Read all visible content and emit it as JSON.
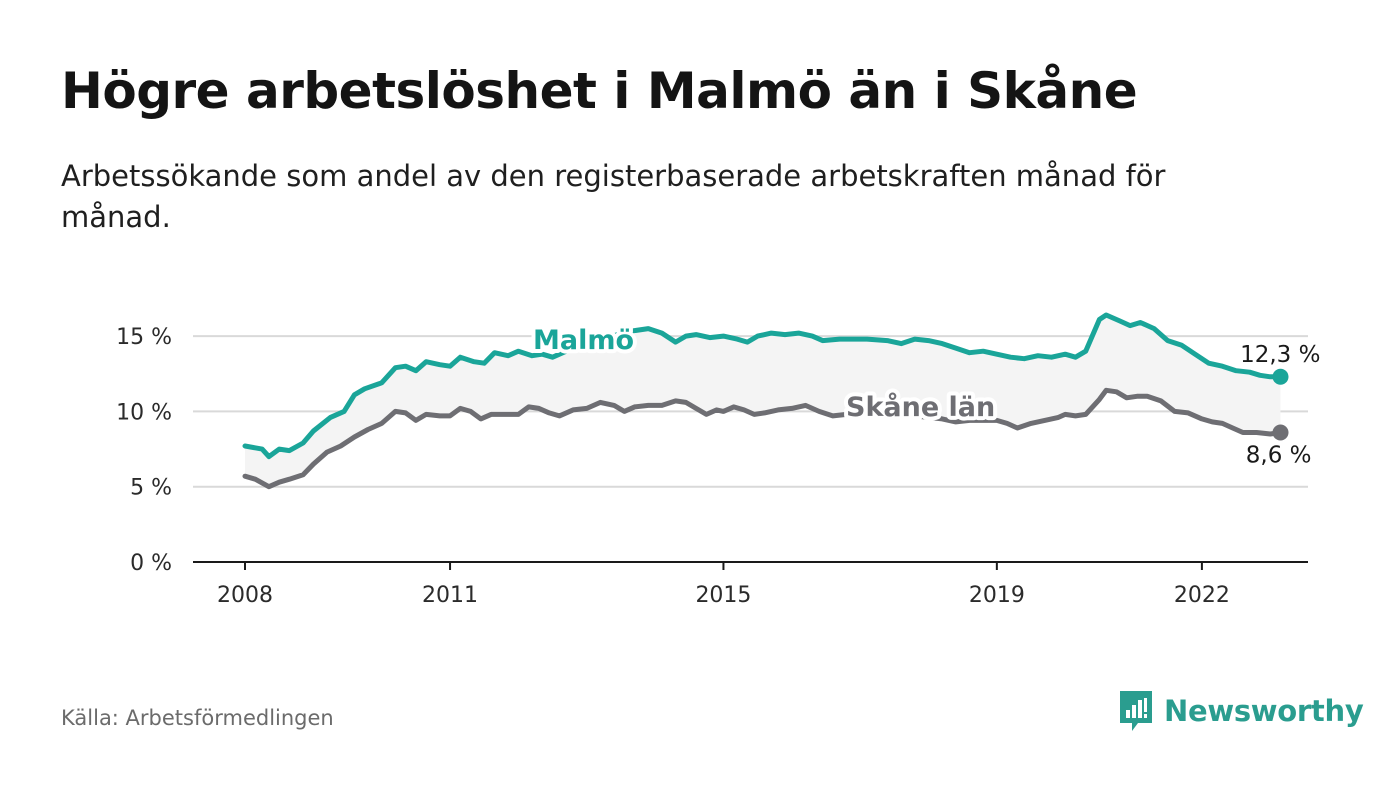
{
  "header": {
    "title": "Högre arbetslöshet i Malmö än i Skåne",
    "subtitle": "Arbetssökande som andel av den registerbaserade arbetskraften månad för månad."
  },
  "footer": {
    "source": "Källa: Arbetsförmedlingen",
    "brand": "Newsworthy"
  },
  "colors": {
    "malmo": "#1aa599",
    "skane": "#6e6e73",
    "band": "#f4f4f4",
    "grid": "#d9d9d9",
    "brand": "#2a9d8f"
  },
  "chart_data": {
    "type": "line",
    "title": "Högre arbetslöshet i Malmö än i Skåne",
    "xlabel": "",
    "ylabel": "",
    "xlim": [
      2007.9,
      2023.9
    ],
    "ylim": [
      0,
      17
    ],
    "yticks": [
      0,
      5,
      10,
      15
    ],
    "ytick_labels": [
      "0 %",
      "5 %",
      "10 %",
      "15 %"
    ],
    "xticks": [
      2008,
      2011,
      2015,
      2019,
      2022
    ],
    "xtick_labels": [
      "2008",
      "2011",
      "2015",
      "2019",
      "2022"
    ],
    "grid": true,
    "series": [
      {
        "name": "Malmö",
        "label": "Malmö",
        "end_label": "12,3 %",
        "color": "#1aa599",
        "points": [
          [
            2008.0,
            7.7
          ],
          [
            2008.25,
            7.5
          ],
          [
            2008.35,
            7.0
          ],
          [
            2008.5,
            7.5
          ],
          [
            2008.65,
            7.4
          ],
          [
            2008.85,
            7.9
          ],
          [
            2009.0,
            8.7
          ],
          [
            2009.25,
            9.6
          ],
          [
            2009.45,
            10.0
          ],
          [
            2009.6,
            11.1
          ],
          [
            2009.75,
            11.5
          ],
          [
            2010.0,
            11.9
          ],
          [
            2010.2,
            12.9
          ],
          [
            2010.35,
            13.0
          ],
          [
            2010.5,
            12.7
          ],
          [
            2010.65,
            13.3
          ],
          [
            2010.85,
            13.1
          ],
          [
            2011.0,
            13.0
          ],
          [
            2011.15,
            13.6
          ],
          [
            2011.35,
            13.3
          ],
          [
            2011.5,
            13.2
          ],
          [
            2011.65,
            13.9
          ],
          [
            2011.85,
            13.7
          ],
          [
            2012.0,
            14.0
          ],
          [
            2012.2,
            13.7
          ],
          [
            2012.35,
            13.8
          ],
          [
            2012.5,
            13.6
          ],
          [
            2012.7,
            14.0
          ],
          [
            2013.0,
            14.6
          ],
          [
            2013.3,
            14.9
          ],
          [
            2013.6,
            15.3
          ],
          [
            2013.9,
            15.5
          ],
          [
            2014.1,
            15.2
          ],
          [
            2014.3,
            14.6
          ],
          [
            2014.45,
            15.0
          ],
          [
            2014.6,
            15.1
          ],
          [
            2014.8,
            14.9
          ],
          [
            2015.0,
            15.0
          ],
          [
            2015.2,
            14.8
          ],
          [
            2015.35,
            14.6
          ],
          [
            2015.5,
            15.0
          ],
          [
            2015.7,
            15.2
          ],
          [
            2015.9,
            15.1
          ],
          [
            2016.1,
            15.2
          ],
          [
            2016.3,
            15.0
          ],
          [
            2016.45,
            14.7
          ],
          [
            2016.7,
            14.8
          ],
          [
            2016.9,
            14.8
          ],
          [
            2017.1,
            14.8
          ],
          [
            2017.4,
            14.7
          ],
          [
            2017.6,
            14.5
          ],
          [
            2017.8,
            14.8
          ],
          [
            2018.0,
            14.7
          ],
          [
            2018.2,
            14.5
          ],
          [
            2018.4,
            14.2
          ],
          [
            2018.6,
            13.9
          ],
          [
            2018.8,
            14.0
          ],
          [
            2019.0,
            13.8
          ],
          [
            2019.2,
            13.6
          ],
          [
            2019.4,
            13.5
          ],
          [
            2019.6,
            13.7
          ],
          [
            2019.8,
            13.6
          ],
          [
            2020.0,
            13.8
          ],
          [
            2020.15,
            13.6
          ],
          [
            2020.3,
            14.0
          ],
          [
            2020.5,
            16.1
          ],
          [
            2020.6,
            16.4
          ],
          [
            2020.8,
            16.0
          ],
          [
            2020.95,
            15.7
          ],
          [
            2021.1,
            15.9
          ],
          [
            2021.3,
            15.5
          ],
          [
            2021.5,
            14.7
          ],
          [
            2021.7,
            14.4
          ],
          [
            2021.9,
            13.8
          ],
          [
            2022.1,
            13.2
          ],
          [
            2022.3,
            13.0
          ],
          [
            2022.5,
            12.7
          ],
          [
            2022.7,
            12.6
          ],
          [
            2022.85,
            12.4
          ],
          [
            2023.0,
            12.3
          ],
          [
            2023.15,
            12.3
          ]
        ]
      },
      {
        "name": "Skåne län",
        "label": "Skåne län",
        "end_label": "8,6 %",
        "color": "#6e6e73",
        "points": [
          [
            2008.0,
            5.7
          ],
          [
            2008.15,
            5.5
          ],
          [
            2008.35,
            5.0
          ],
          [
            2008.5,
            5.3
          ],
          [
            2008.65,
            5.5
          ],
          [
            2008.85,
            5.8
          ],
          [
            2009.0,
            6.5
          ],
          [
            2009.2,
            7.3
          ],
          [
            2009.4,
            7.7
          ],
          [
            2009.6,
            8.3
          ],
          [
            2009.8,
            8.8
          ],
          [
            2010.0,
            9.2
          ],
          [
            2010.2,
            10.0
          ],
          [
            2010.35,
            9.9
          ],
          [
            2010.5,
            9.4
          ],
          [
            2010.65,
            9.8
          ],
          [
            2010.85,
            9.7
          ],
          [
            2011.0,
            9.7
          ],
          [
            2011.15,
            10.2
          ],
          [
            2011.3,
            10.0
          ],
          [
            2011.45,
            9.5
          ],
          [
            2011.6,
            9.8
          ],
          [
            2011.8,
            9.8
          ],
          [
            2012.0,
            9.8
          ],
          [
            2012.15,
            10.3
          ],
          [
            2012.3,
            10.2
          ],
          [
            2012.45,
            9.9
          ],
          [
            2012.6,
            9.7
          ],
          [
            2012.8,
            10.1
          ],
          [
            2013.0,
            10.2
          ],
          [
            2013.2,
            10.6
          ],
          [
            2013.4,
            10.4
          ],
          [
            2013.55,
            10.0
          ],
          [
            2013.7,
            10.3
          ],
          [
            2013.9,
            10.4
          ],
          [
            2014.1,
            10.4
          ],
          [
            2014.3,
            10.7
          ],
          [
            2014.45,
            10.6
          ],
          [
            2014.6,
            10.2
          ],
          [
            2014.75,
            9.8
          ],
          [
            2014.9,
            10.1
          ],
          [
            2015.0,
            10.0
          ],
          [
            2015.15,
            10.3
          ],
          [
            2015.3,
            10.1
          ],
          [
            2015.45,
            9.8
          ],
          [
            2015.6,
            9.9
          ],
          [
            2015.8,
            10.1
          ],
          [
            2016.0,
            10.2
          ],
          [
            2016.2,
            10.4
          ],
          [
            2016.4,
            10.0
          ],
          [
            2016.6,
            9.7
          ],
          [
            2016.8,
            9.8
          ],
          [
            2017.0,
            9.8
          ],
          [
            2017.2,
            9.8
          ],
          [
            2017.4,
            9.7
          ],
          [
            2017.6,
            9.7
          ],
          [
            2017.8,
            9.7
          ],
          [
            2018.0,
            9.6
          ],
          [
            2018.2,
            9.5
          ],
          [
            2018.4,
            9.3
          ],
          [
            2018.6,
            9.4
          ],
          [
            2018.8,
            9.4
          ],
          [
            2019.0,
            9.4
          ],
          [
            2019.15,
            9.2
          ],
          [
            2019.3,
            8.9
          ],
          [
            2019.5,
            9.2
          ],
          [
            2019.7,
            9.4
          ],
          [
            2019.9,
            9.6
          ],
          [
            2020.0,
            9.8
          ],
          [
            2020.15,
            9.7
          ],
          [
            2020.3,
            9.8
          ],
          [
            2020.5,
            10.8
          ],
          [
            2020.6,
            11.4
          ],
          [
            2020.75,
            11.3
          ],
          [
            2020.9,
            10.9
          ],
          [
            2021.05,
            11.0
          ],
          [
            2021.2,
            11.0
          ],
          [
            2021.4,
            10.7
          ],
          [
            2021.6,
            10.0
          ],
          [
            2021.8,
            9.9
          ],
          [
            2022.0,
            9.5
          ],
          [
            2022.15,
            9.3
          ],
          [
            2022.3,
            9.2
          ],
          [
            2022.45,
            8.9
          ],
          [
            2022.6,
            8.6
          ],
          [
            2022.8,
            8.6
          ],
          [
            2023.0,
            8.5
          ],
          [
            2023.15,
            8.6
          ]
        ]
      }
    ]
  }
}
